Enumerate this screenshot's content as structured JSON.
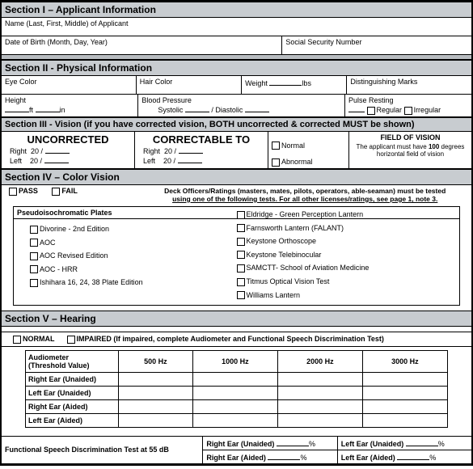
{
  "s1": {
    "title": "Section I – Applicant Information",
    "name_label": "Name (Last, First, Middle) of Applicant",
    "dob": "Date of Birth (Month, Day, Year)",
    "ssn": "Social Security Number"
  },
  "s2": {
    "title": "Section II - Physical Information",
    "eye": "Eye Color",
    "hair": "Hair Color",
    "weight": "Weight",
    "lbs": "lbs",
    "marks": "Distinguishing Marks",
    "height": "Height",
    "ft": "ft",
    "in": "in",
    "bp": "Blood Pressure",
    "sys": "Systolic",
    "dia": "/ Diastolic",
    "pulse": "Pulse Resting",
    "reg": "Regular",
    "irreg": "Irregular"
  },
  "s3": {
    "title": "Section III - Vision (if you have corrected vision, BOTH uncorrected & corrected MUST be shown)",
    "uncorr": "UNCORRECTED",
    "corr": "CORRECTABLE TO",
    "fov": "FIELD OF VISION",
    "right": "Right",
    "left": "Left",
    "v20": "20",
    "normal": "Normal",
    "abnormal": "Abnormal",
    "note": "The applicant must have 100 degrees horizontal field of vision",
    "note_bold": "100"
  },
  "s4": {
    "title": "Section IV – Color Vision",
    "pass": "PASS",
    "fail": "FAIL",
    "instr1": "Deck Officers/Ratings (masters, mates, pilots, operators, able-seaman) must be tested",
    "instr2": "using one of the following tests.  For all other licenses/ratings, see page 1, note 3.",
    "plates": "Pseudoisochromatic Plates",
    "left": [
      "Divorine - 2nd Edition",
      "AOC",
      "AOC Revised Edition",
      "AOC - HRR",
      "Ishihara 16, 24, 38 Plate Edition"
    ],
    "right": [
      "Eldridge - Green Perception Lantern",
      "Farnsworth Lantern (FALANT)",
      "Keystone Orthoscope",
      "Keystone Telebinocular",
      "SAMCTT- School of Aviation Medicine",
      "Titmus Optical Vision Test",
      "Williams Lantern"
    ]
  },
  "s5": {
    "title": "Section V – Hearing",
    "normal": "NORMAL",
    "impaired": "IMPAIRED (If impaired, complete Audiometer and Functional Speech Discrimination Test)",
    "audio": "Audiometer",
    "thresh": "(Threshold Value)",
    "hz": [
      "500 Hz",
      "1000 Hz",
      "2000 Hz",
      "3000 Hz"
    ],
    "rows": [
      "Right Ear (Unaided)",
      "Left Ear (Unaided)",
      "Right Ear (Aided)",
      "Left Ear (Aided)"
    ],
    "func": "Functional Speech Discrimination Test at 55 dB",
    "reu": "Right Ear (Unaided)",
    "leu": "Left Ear (Unaided)",
    "rea": "Right Ear (Aided)",
    "lea": "Left Ear (Aided)",
    "pct": "%"
  }
}
